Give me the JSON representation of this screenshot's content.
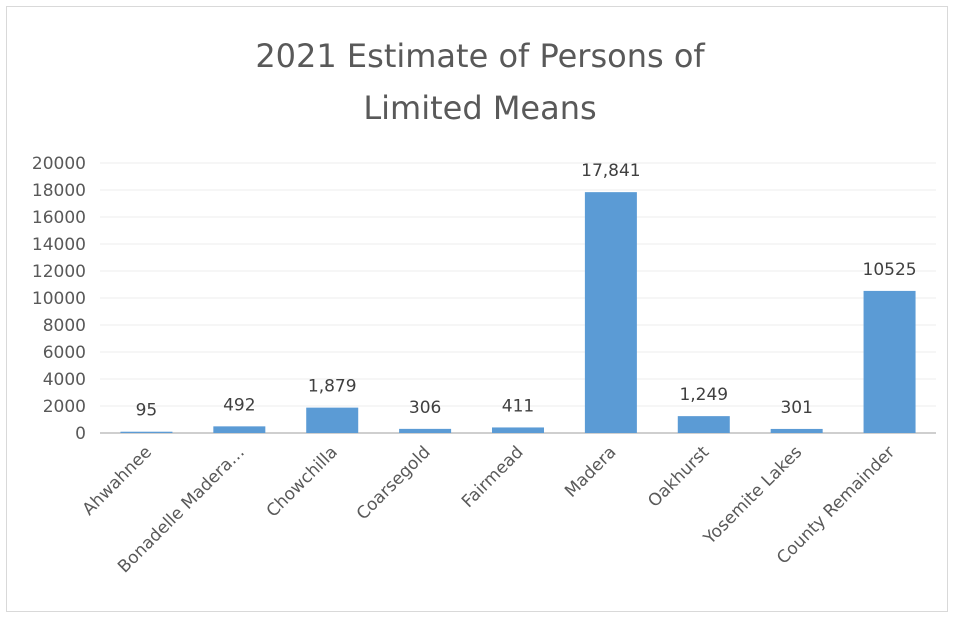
{
  "chart_data": {
    "type": "bar",
    "title": "2021 Estimate of Persons of Limited Means",
    "categories": [
      "Ahwahnee",
      "Bonadelle Madera…",
      "Chowchilla",
      "Coarsegold",
      "Fairmead",
      "Madera",
      "Oakhurst",
      "Yosemite Lakes",
      "County Remainder"
    ],
    "values": [
      95,
      492,
      1879,
      306,
      411,
      17841,
      1249,
      301,
      10525
    ],
    "data_labels": [
      "95",
      "492",
      "1,879",
      "306",
      "411",
      "17,841",
      "1,249",
      "301",
      "10525"
    ],
    "y_ticks": [
      "0",
      "2000",
      "4000",
      "6000",
      "8000",
      "10000",
      "12000",
      "14000",
      "16000",
      "18000",
      "20000"
    ],
    "ylim": [
      0,
      20000
    ],
    "xlabel": "",
    "ylabel": "",
    "grid": true,
    "legend": "none",
    "bar_color": "#5b9bd5",
    "grid_color": "#eeeeee",
    "axis_color": "#bfbfbf"
  }
}
